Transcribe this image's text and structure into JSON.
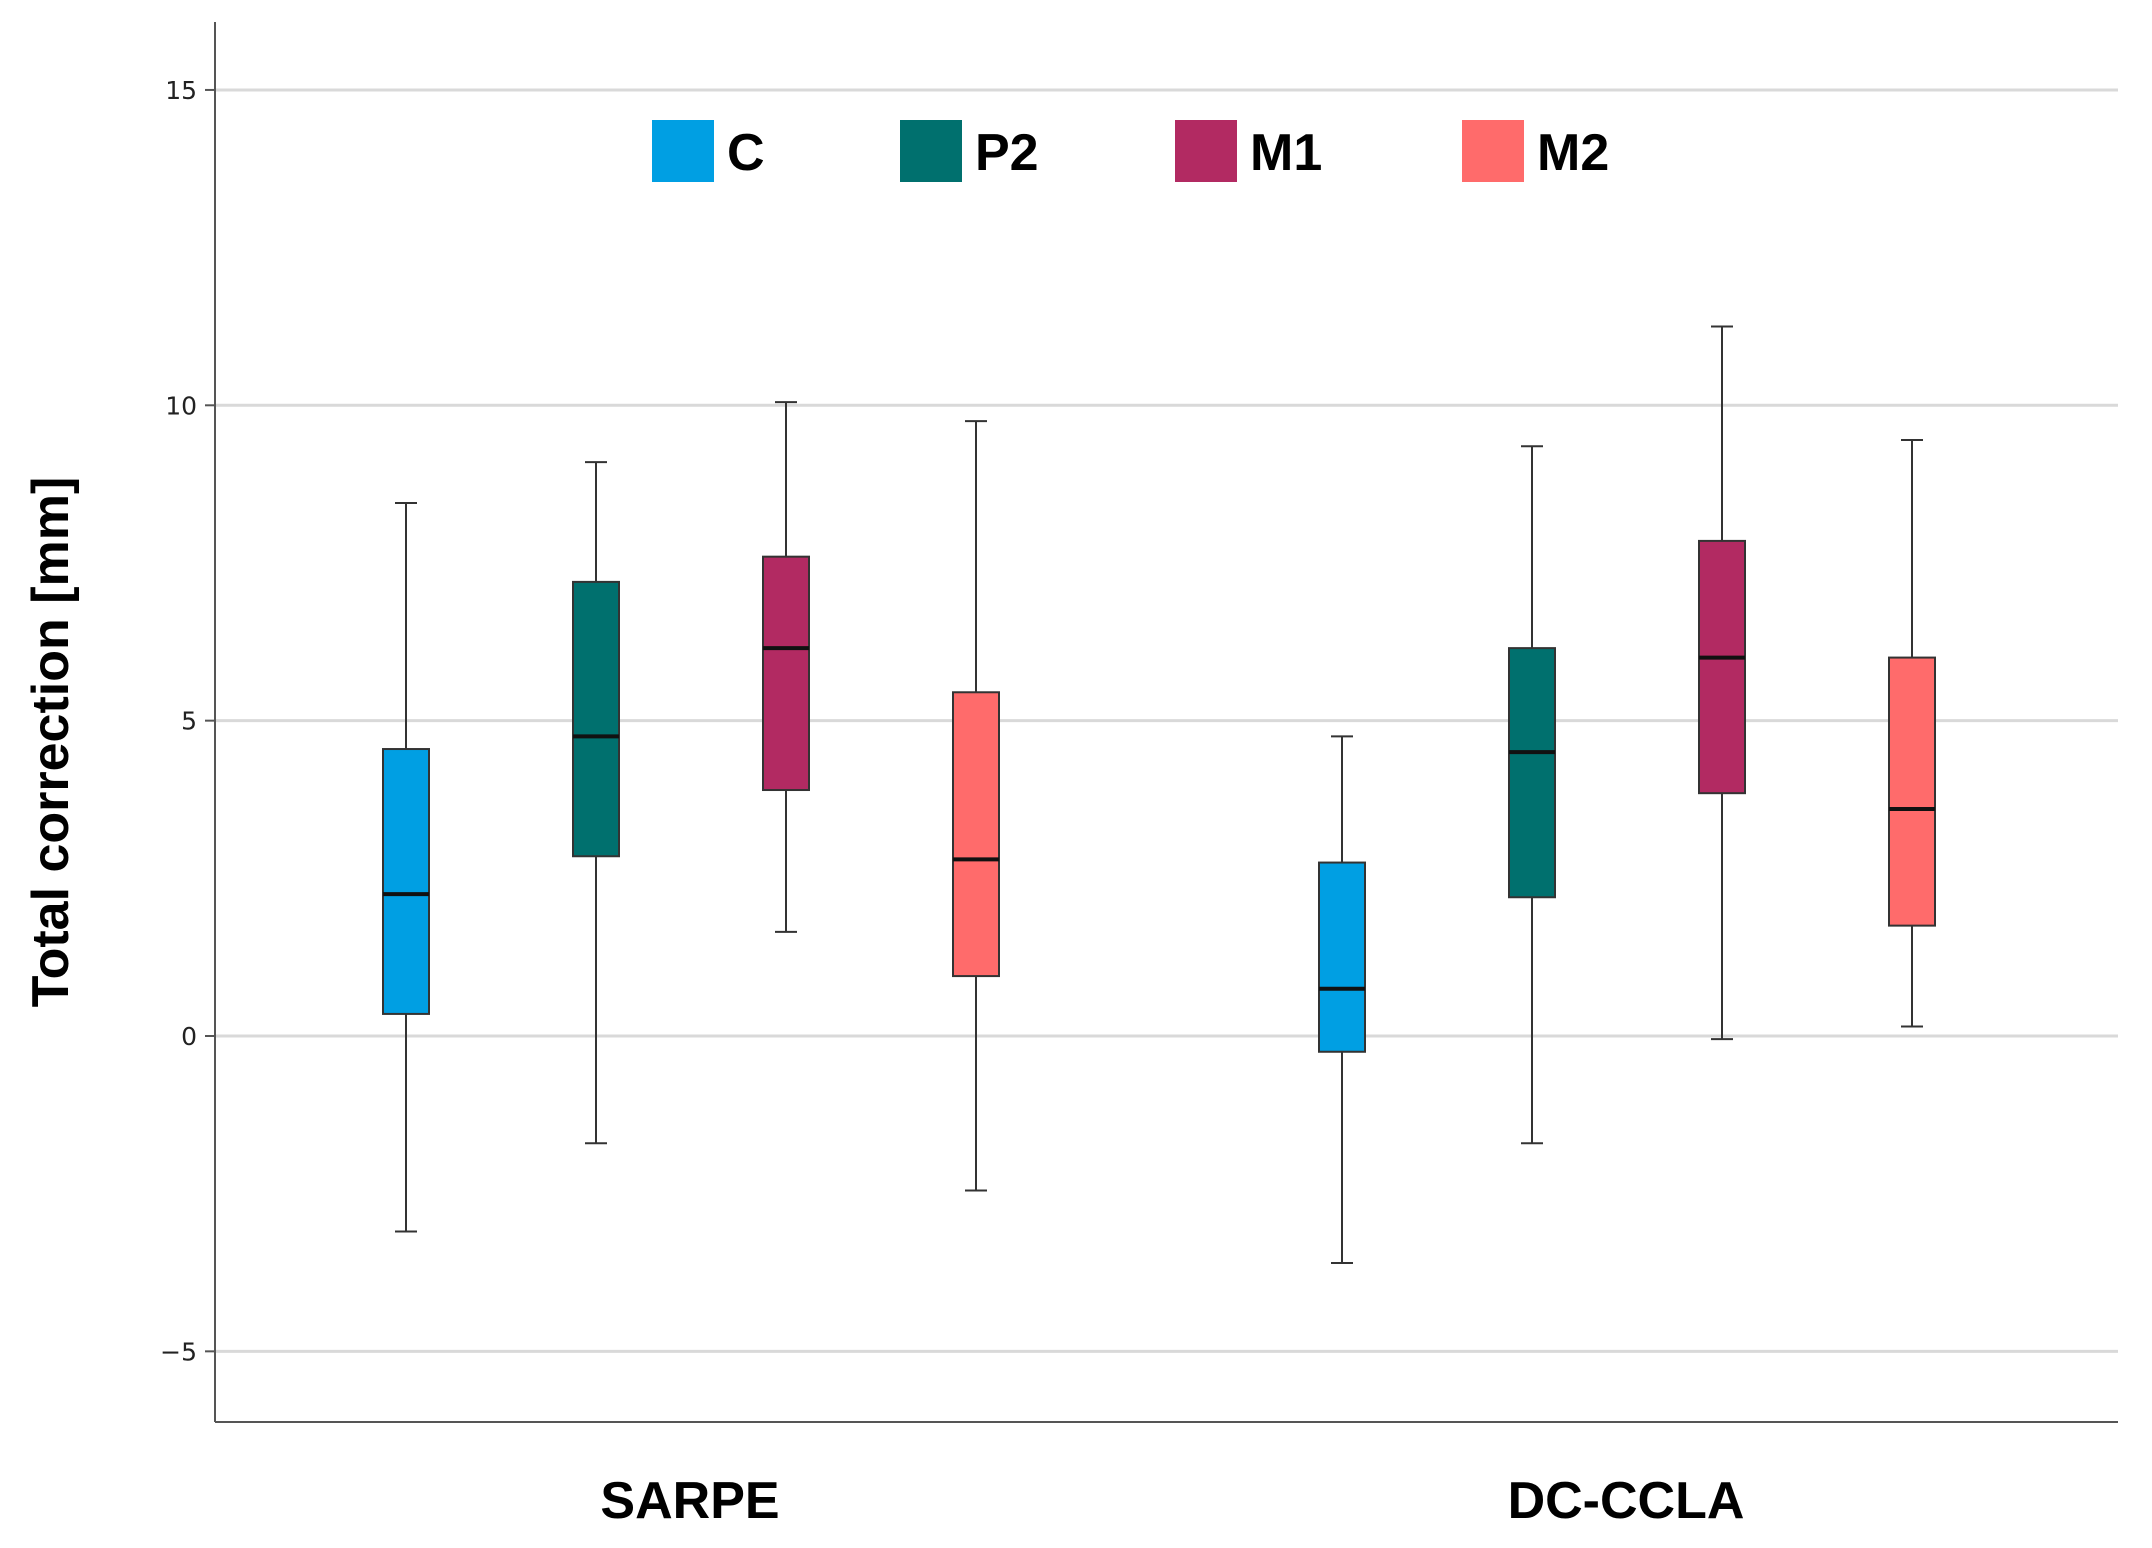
{
  "chart_data": {
    "type": "boxplot",
    "title": "",
    "xlabel": "",
    "ylabel": "Total correction [mm]",
    "ylim": [
      -6,
      16
    ],
    "yticks": [
      15,
      10,
      5,
      0,
      -5
    ],
    "ytick_labels": [
      "15",
      "10",
      "5",
      "0",
      "−5"
    ],
    "grid": true,
    "legend_position": "top",
    "categories": [
      "SARPE",
      "DC-CCLA"
    ],
    "series": [
      {
        "name": "C",
        "color": "#009fe3",
        "boxes": [
          {
            "min": -3.1,
            "q1": 0.35,
            "median": 2.25,
            "q3": 4.55,
            "max": 8.45
          },
          {
            "min": -3.6,
            "q1": -0.25,
            "median": 0.75,
            "q3": 2.75,
            "max": 4.75
          }
        ]
      },
      {
        "name": "P2",
        "color": "#00706e",
        "boxes": [
          {
            "min": -1.7,
            "q1": 2.85,
            "median": 4.75,
            "q3": 7.2,
            "max": 9.1
          },
          {
            "min": -1.7,
            "q1": 2.2,
            "median": 4.5,
            "q3": 6.15,
            "max": 9.35
          }
        ]
      },
      {
        "name": "M1",
        "color": "#b22a62",
        "boxes": [
          {
            "min": 1.65,
            "q1": 3.9,
            "median": 6.15,
            "q3": 7.6,
            "max": 10.05
          },
          {
            "min": -0.05,
            "q1": 3.85,
            "median": 6.0,
            "q3": 7.85,
            "max": 11.25
          }
        ]
      },
      {
        "name": "M2",
        "color": "#ff6b6b",
        "boxes": [
          {
            "min": -2.45,
            "q1": 0.95,
            "median": 2.8,
            "q3": 5.45,
            "max": 9.75
          },
          {
            "min": 0.15,
            "q1": 1.75,
            "median": 3.6,
            "q3": 6.0,
            "max": 9.45
          }
        ]
      }
    ]
  }
}
